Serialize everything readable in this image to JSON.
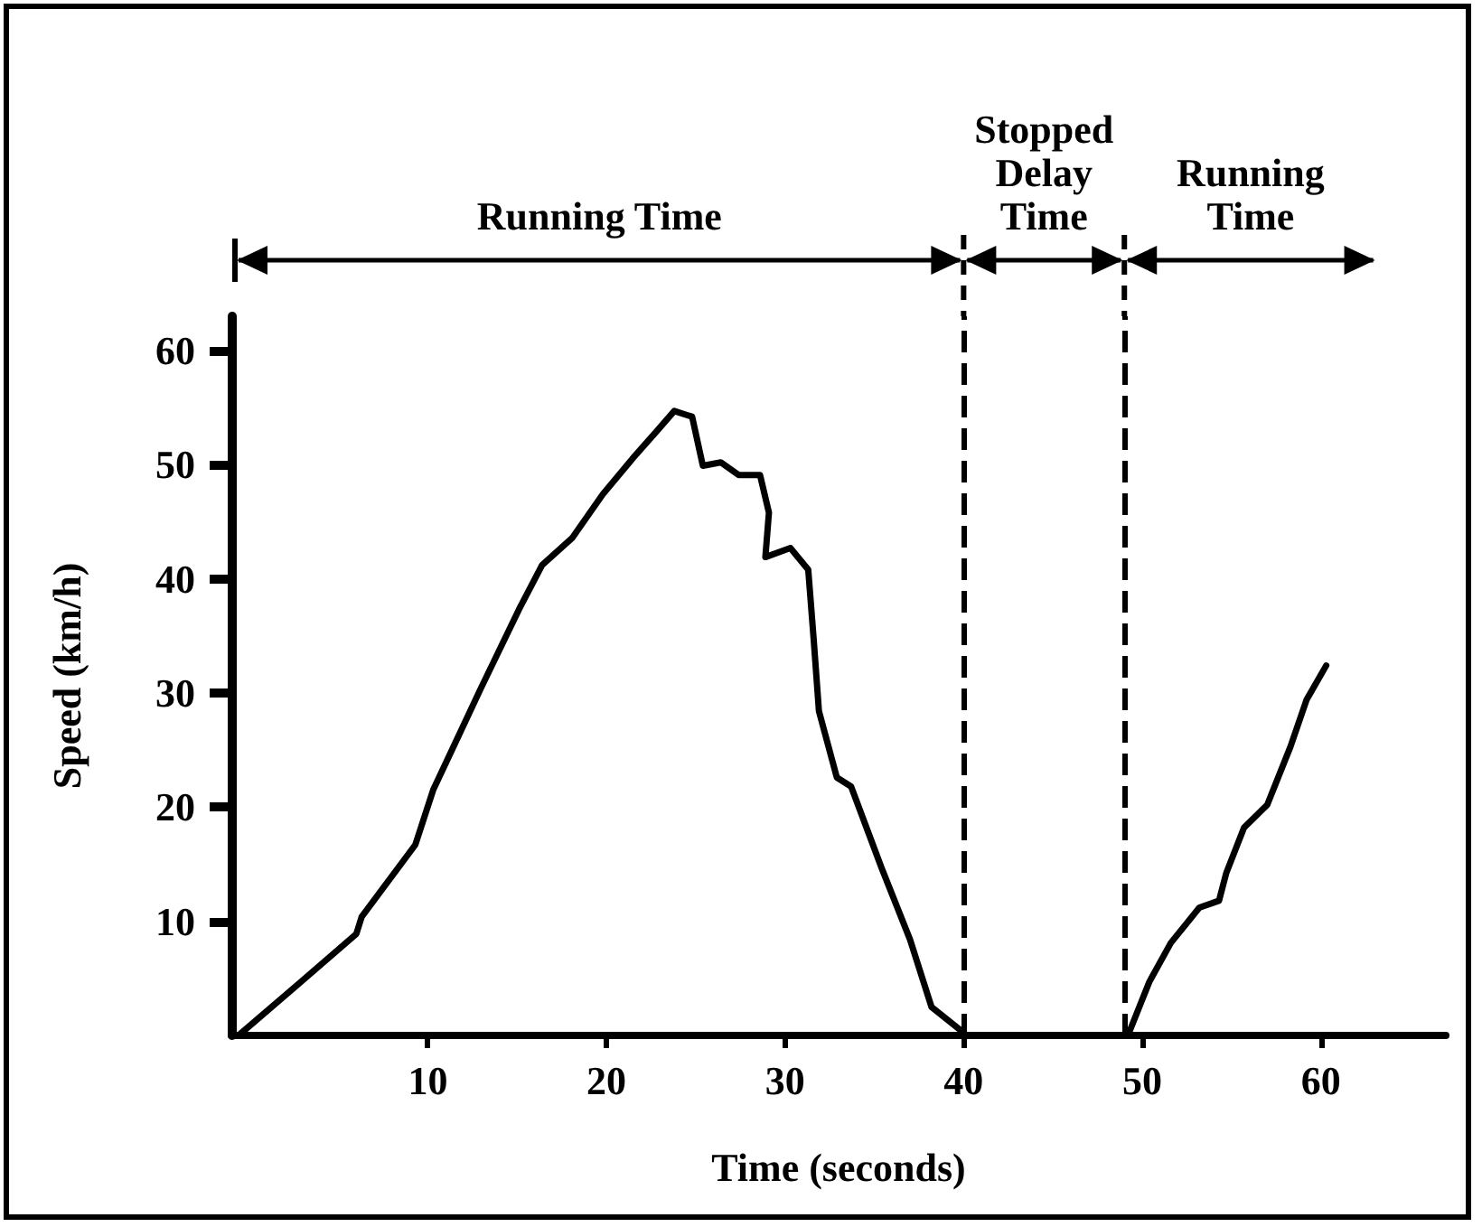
{
  "chart_data": {
    "type": "line",
    "xlabel": "Time (seconds)",
    "ylabel": "Speed (km/h)",
    "annotations": [
      "Running Time",
      "Stopped Delay Time",
      "Running Time"
    ],
    "series": [
      {
        "color": "#000000",
        "x": [
          -0.6,
          2.9,
          6.0,
          6.3,
          9.3,
          10.3,
          13.0,
          15.1,
          16.4,
          18.1,
          19.8,
          21.5,
          22.8,
          23.8,
          24.8,
          25.4,
          26.4,
          27.4,
          28.6,
          29.1,
          28.9,
          30.3,
          31.3,
          31.6,
          31.9,
          32.9,
          33.7,
          35.4,
          37.0,
          38.2,
          39.8,
          40.0,
          49.2,
          50.4,
          51.6,
          53.2,
          54.3,
          54.7,
          55.7,
          57.0,
          58.3,
          59.2,
          60.3
        ],
        "values": [
          0,
          4.7,
          8.9,
          10.4,
          16.7,
          21.5,
          30.5,
          37.3,
          41.2,
          43.6,
          47.4,
          50.6,
          52.9,
          54.7,
          54.2,
          49.9,
          50.2,
          49.1,
          49.1,
          45.8,
          41.9,
          42.7,
          40.8,
          34.8,
          28.4,
          22.6,
          21.8,
          14.7,
          8.4,
          2.5,
          0.5,
          0,
          0,
          4.7,
          8.1,
          11.2,
          11.8,
          14.2,
          18.2,
          20.2,
          25.3,
          29.4,
          32.4
        ]
      }
    ],
    "xlim": [
      -1,
      67
    ],
    "xticks": [
      10,
      20,
      30,
      40,
      50,
      60
    ],
    "ylim": [
      0,
      63
    ],
    "yticks": [
      10,
      20,
      30,
      40,
      50,
      60
    ],
    "ref_lines": [
      {
        "axis": "x",
        "value": 40,
        "line_style": "dashed",
        "color": "#000000"
      },
      {
        "axis": "x",
        "value": 49,
        "line_style": "dashed",
        "color": "#000000"
      }
    ],
    "grid": false,
    "marker": "none",
    "line_style": "solid"
  }
}
